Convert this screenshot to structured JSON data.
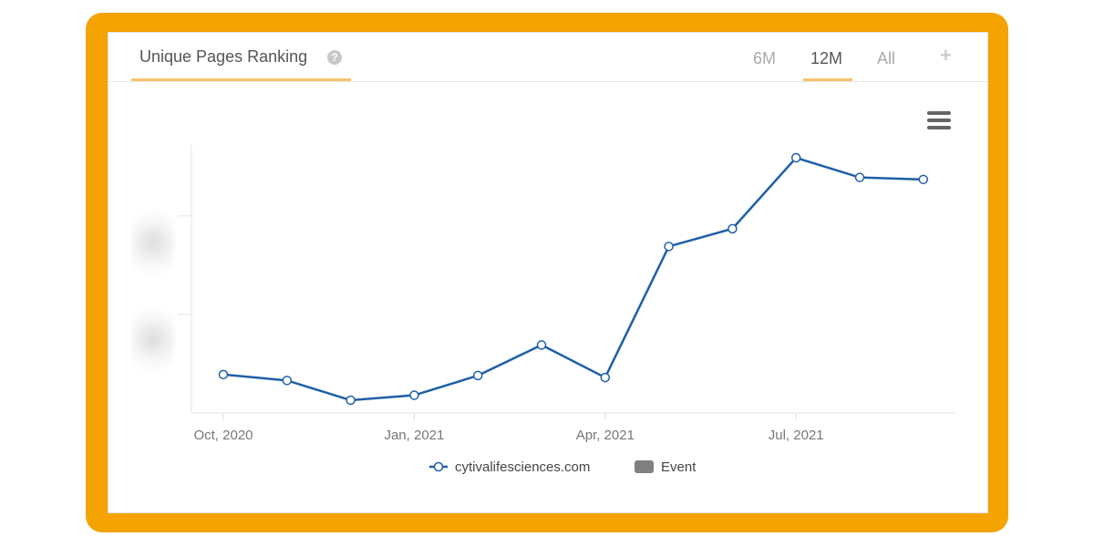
{
  "header": {
    "title": "Unique Pages Ranking",
    "tabs": [
      "6M",
      "12M",
      "All"
    ],
    "active_tab": "12M",
    "add_label": "+"
  },
  "colors": {
    "frame": "#f4a300",
    "series": "#1f5fa6",
    "accent": "#f6c36b",
    "event": "#808080"
  },
  "chart_data": {
    "type": "line",
    "title": "",
    "xlabel": "",
    "ylabel": "",
    "x": [
      "Oct 2020",
      "Nov 2020",
      "Dec 2020",
      "Jan 2021",
      "Feb 2021",
      "Mar 2021",
      "Apr 2021",
      "May 2021",
      "Jun 2021",
      "Jul 2021",
      "Aug 2021",
      "Sep 2021"
    ],
    "x_tick_labels": [
      "Oct, 2020",
      "Jan, 2021",
      "Apr, 2021",
      "Jul, 2021"
    ],
    "y_tick_labels_visible": false,
    "ylim": [
      0,
      2.72
    ],
    "y_ticks": [
      1,
      2
    ],
    "series": [
      {
        "name": "cytivalifesciences.com",
        "values": [
          0.39,
          0.33,
          0.13,
          0.18,
          0.38,
          0.69,
          0.36,
          1.69,
          1.87,
          2.59,
          2.39,
          2.37
        ]
      }
    ],
    "legend": {
      "items": [
        "cytivalifesciences.com",
        "Event"
      ],
      "placement": "bottom"
    },
    "grid": false
  }
}
